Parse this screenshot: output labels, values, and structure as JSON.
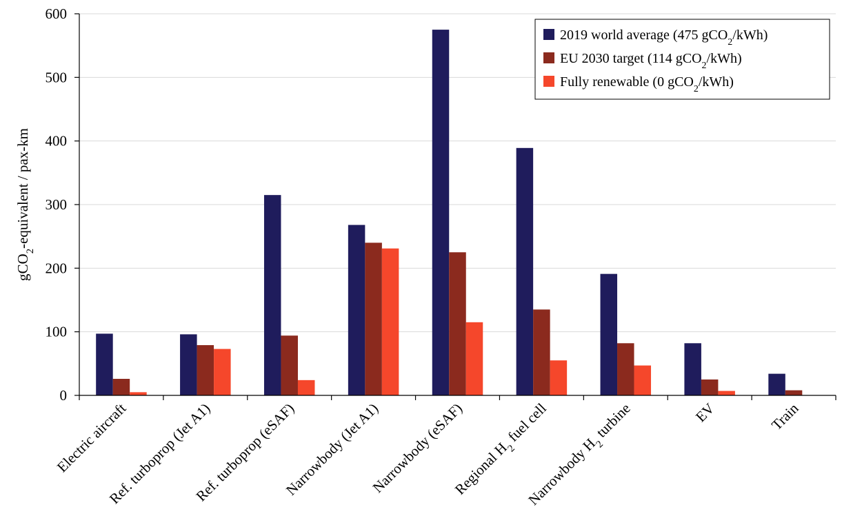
{
  "chart_data": {
    "type": "bar",
    "title": "",
    "xlabel": "",
    "ylabel_prefix": "gCO",
    "ylabel_sub": "2",
    "ylabel_suffix": "-equivalent / pax-km",
    "ylim": [
      0,
      600
    ],
    "yticks": [
      0,
      100,
      200,
      300,
      400,
      500,
      600
    ],
    "grid": true,
    "legend_position": "top-right",
    "categories": [
      {
        "pre": "Electric aircraft",
        "sub": "",
        "post": ""
      },
      {
        "pre": "Ref. turboprop (Jet A1)",
        "sub": "",
        "post": ""
      },
      {
        "pre": "Ref. turboprop (eSAF)",
        "sub": "",
        "post": ""
      },
      {
        "pre": "Narrowbody (Jet A1)",
        "sub": "",
        "post": ""
      },
      {
        "pre": "Narrowbody (eSAF)",
        "sub": "",
        "post": ""
      },
      {
        "pre": "Regional H",
        "sub": "2",
        "post": " fuel cell"
      },
      {
        "pre": "Narrowbody H",
        "sub": "2",
        "post": " turbine"
      },
      {
        "pre": "EV",
        "sub": "",
        "post": ""
      },
      {
        "pre": "Train",
        "sub": "",
        "post": ""
      }
    ],
    "series": [
      {
        "name_pre": "2019 world average (475 gCO",
        "name_sub": "2",
        "name_post": "/kWh)",
        "color": "#1f1c5c",
        "values": [
          97,
          96,
          315,
          268,
          575,
          389,
          191,
          82,
          34
        ]
      },
      {
        "name_pre": "EU 2030 target (114 gCO",
        "name_sub": "2",
        "name_post": "/kWh)",
        "color": "#8b2a1e",
        "values": [
          26,
          79,
          94,
          240,
          225,
          135,
          82,
          25,
          8
        ]
      },
      {
        "name_pre": "Fully renewable (0 gCO",
        "name_sub": "2",
        "name_post": "/kWh)",
        "color": "#f5472b",
        "values": [
          5,
          73,
          24,
          231,
          115,
          55,
          47,
          7,
          0
        ]
      }
    ]
  }
}
